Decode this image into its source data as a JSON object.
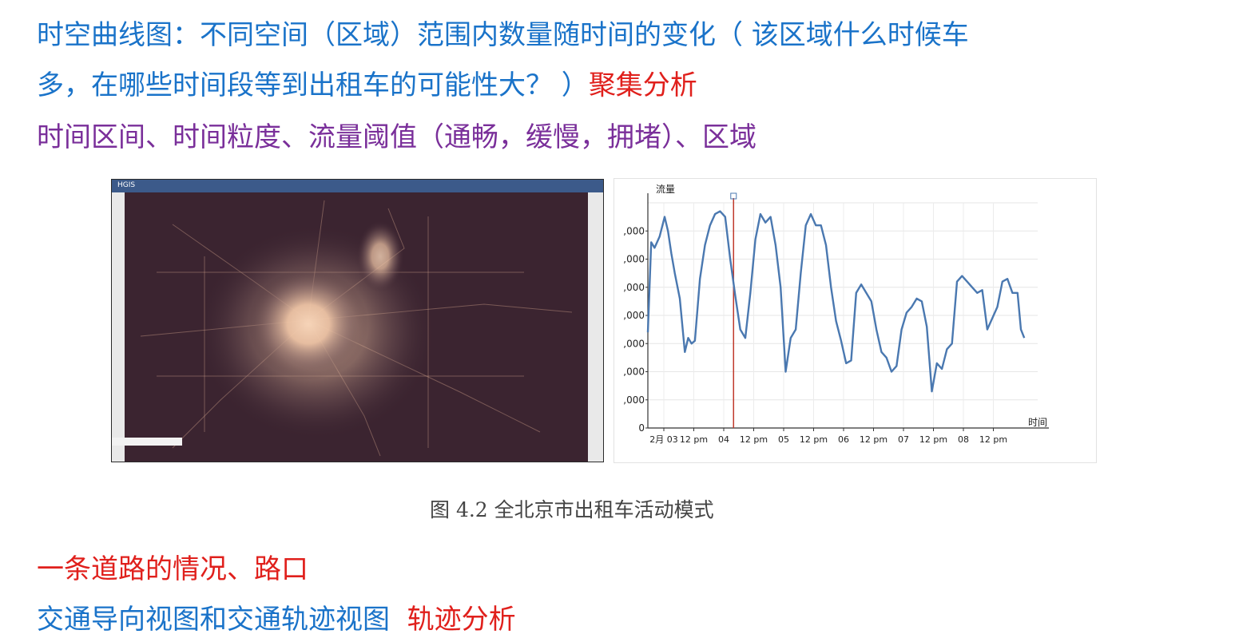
{
  "lines": {
    "l1": "时空曲线图：不同空间（区域）范围内数量随时间的变化（ 该区域什么时候车",
    "l2_blue": "多，在哪些时间段等到出租车的可能性大？ ）",
    "l2_red": "聚集分析",
    "l3": "时间区间、时间粒度、流量阈值（通畅，缓慢，拥堵）、区域",
    "l4": "一条道路的情况、路口",
    "l5_blue": "交通导向视图和交通轨迹视图",
    "l5_red": "轨迹分析"
  },
  "figure": {
    "caption": "图 4.2  全北京市出租车活动模式",
    "map": {
      "logo": "HGIS"
    }
  },
  "chart_data": {
    "type": "line",
    "ylabel": "流量",
    "xlabel": "时间",
    "y_ticks": [
      ",000",
      ",000",
      ",000",
      ",000",
      ",000",
      ",000",
      ",000",
      "0"
    ],
    "x_ticks": [
      "2月 03",
      "12 pm",
      "04",
      "12 pm",
      "05",
      "12 pm",
      "06",
      "12 pm",
      "07",
      "12 pm",
      "08",
      "12 pm"
    ],
    "ylim": [
      0,
      8
    ],
    "xlim": [
      0,
      11.6
    ],
    "grid": true,
    "line_color": "#4a78b0",
    "marker_color": "#c0392b",
    "marker_x": 2.55,
    "series": [
      {
        "x": [
          0,
          0.1,
          0.2,
          0.35,
          0.5,
          0.6,
          0.7,
          0.8,
          0.95,
          1.1,
          1.2,
          1.3,
          1.4,
          1.55,
          1.7,
          1.85,
          2.0,
          2.15,
          2.3,
          2.45,
          2.6,
          2.75,
          2.9,
          3.05,
          3.2,
          3.35,
          3.5,
          3.65,
          3.8,
          3.95,
          4.1,
          4.25,
          4.4,
          4.55,
          4.7,
          4.85,
          5.0,
          5.15,
          5.3,
          5.45,
          5.6,
          5.75,
          5.9,
          6.05,
          6.2,
          6.35,
          6.5,
          6.65,
          6.8,
          6.95,
          7.1,
          7.25,
          7.4,
          7.55,
          7.7,
          7.85,
          8.0,
          8.15,
          8.3,
          8.45,
          8.6,
          8.75,
          8.9,
          9.05,
          9.2,
          9.35,
          9.5,
          9.65,
          9.8,
          9.95,
          10.1,
          10.25,
          10.4,
          10.55,
          10.7,
          10.85,
          11.0,
          11.1,
          11.2
        ],
        "y": [
          3.4,
          6.6,
          6.4,
          6.8,
          7.5,
          7.0,
          6.2,
          5.5,
          4.6,
          2.7,
          3.2,
          3.0,
          3.1,
          5.3,
          6.5,
          7.2,
          7.6,
          7.7,
          7.5,
          6.0,
          4.7,
          3.5,
          3.2,
          4.8,
          6.7,
          7.6,
          7.3,
          7.5,
          6.5,
          5.0,
          2.0,
          3.2,
          3.5,
          5.5,
          7.2,
          7.6,
          7.2,
          7.2,
          6.5,
          5.0,
          3.8,
          3.1,
          2.3,
          2.4,
          4.8,
          5.1,
          4.8,
          4.5,
          3.5,
          2.7,
          2.5,
          2.0,
          2.2,
          3.5,
          4.1,
          4.3,
          4.6,
          4.5,
          3.6,
          1.3,
          2.3,
          2.1,
          2.8,
          3.0,
          5.2,
          5.4,
          5.2,
          5.0,
          4.8,
          4.9,
          3.5,
          3.9,
          4.3,
          5.2,
          5.3,
          4.8,
          4.8,
          3.5,
          3.2
        ]
      }
    ]
  }
}
